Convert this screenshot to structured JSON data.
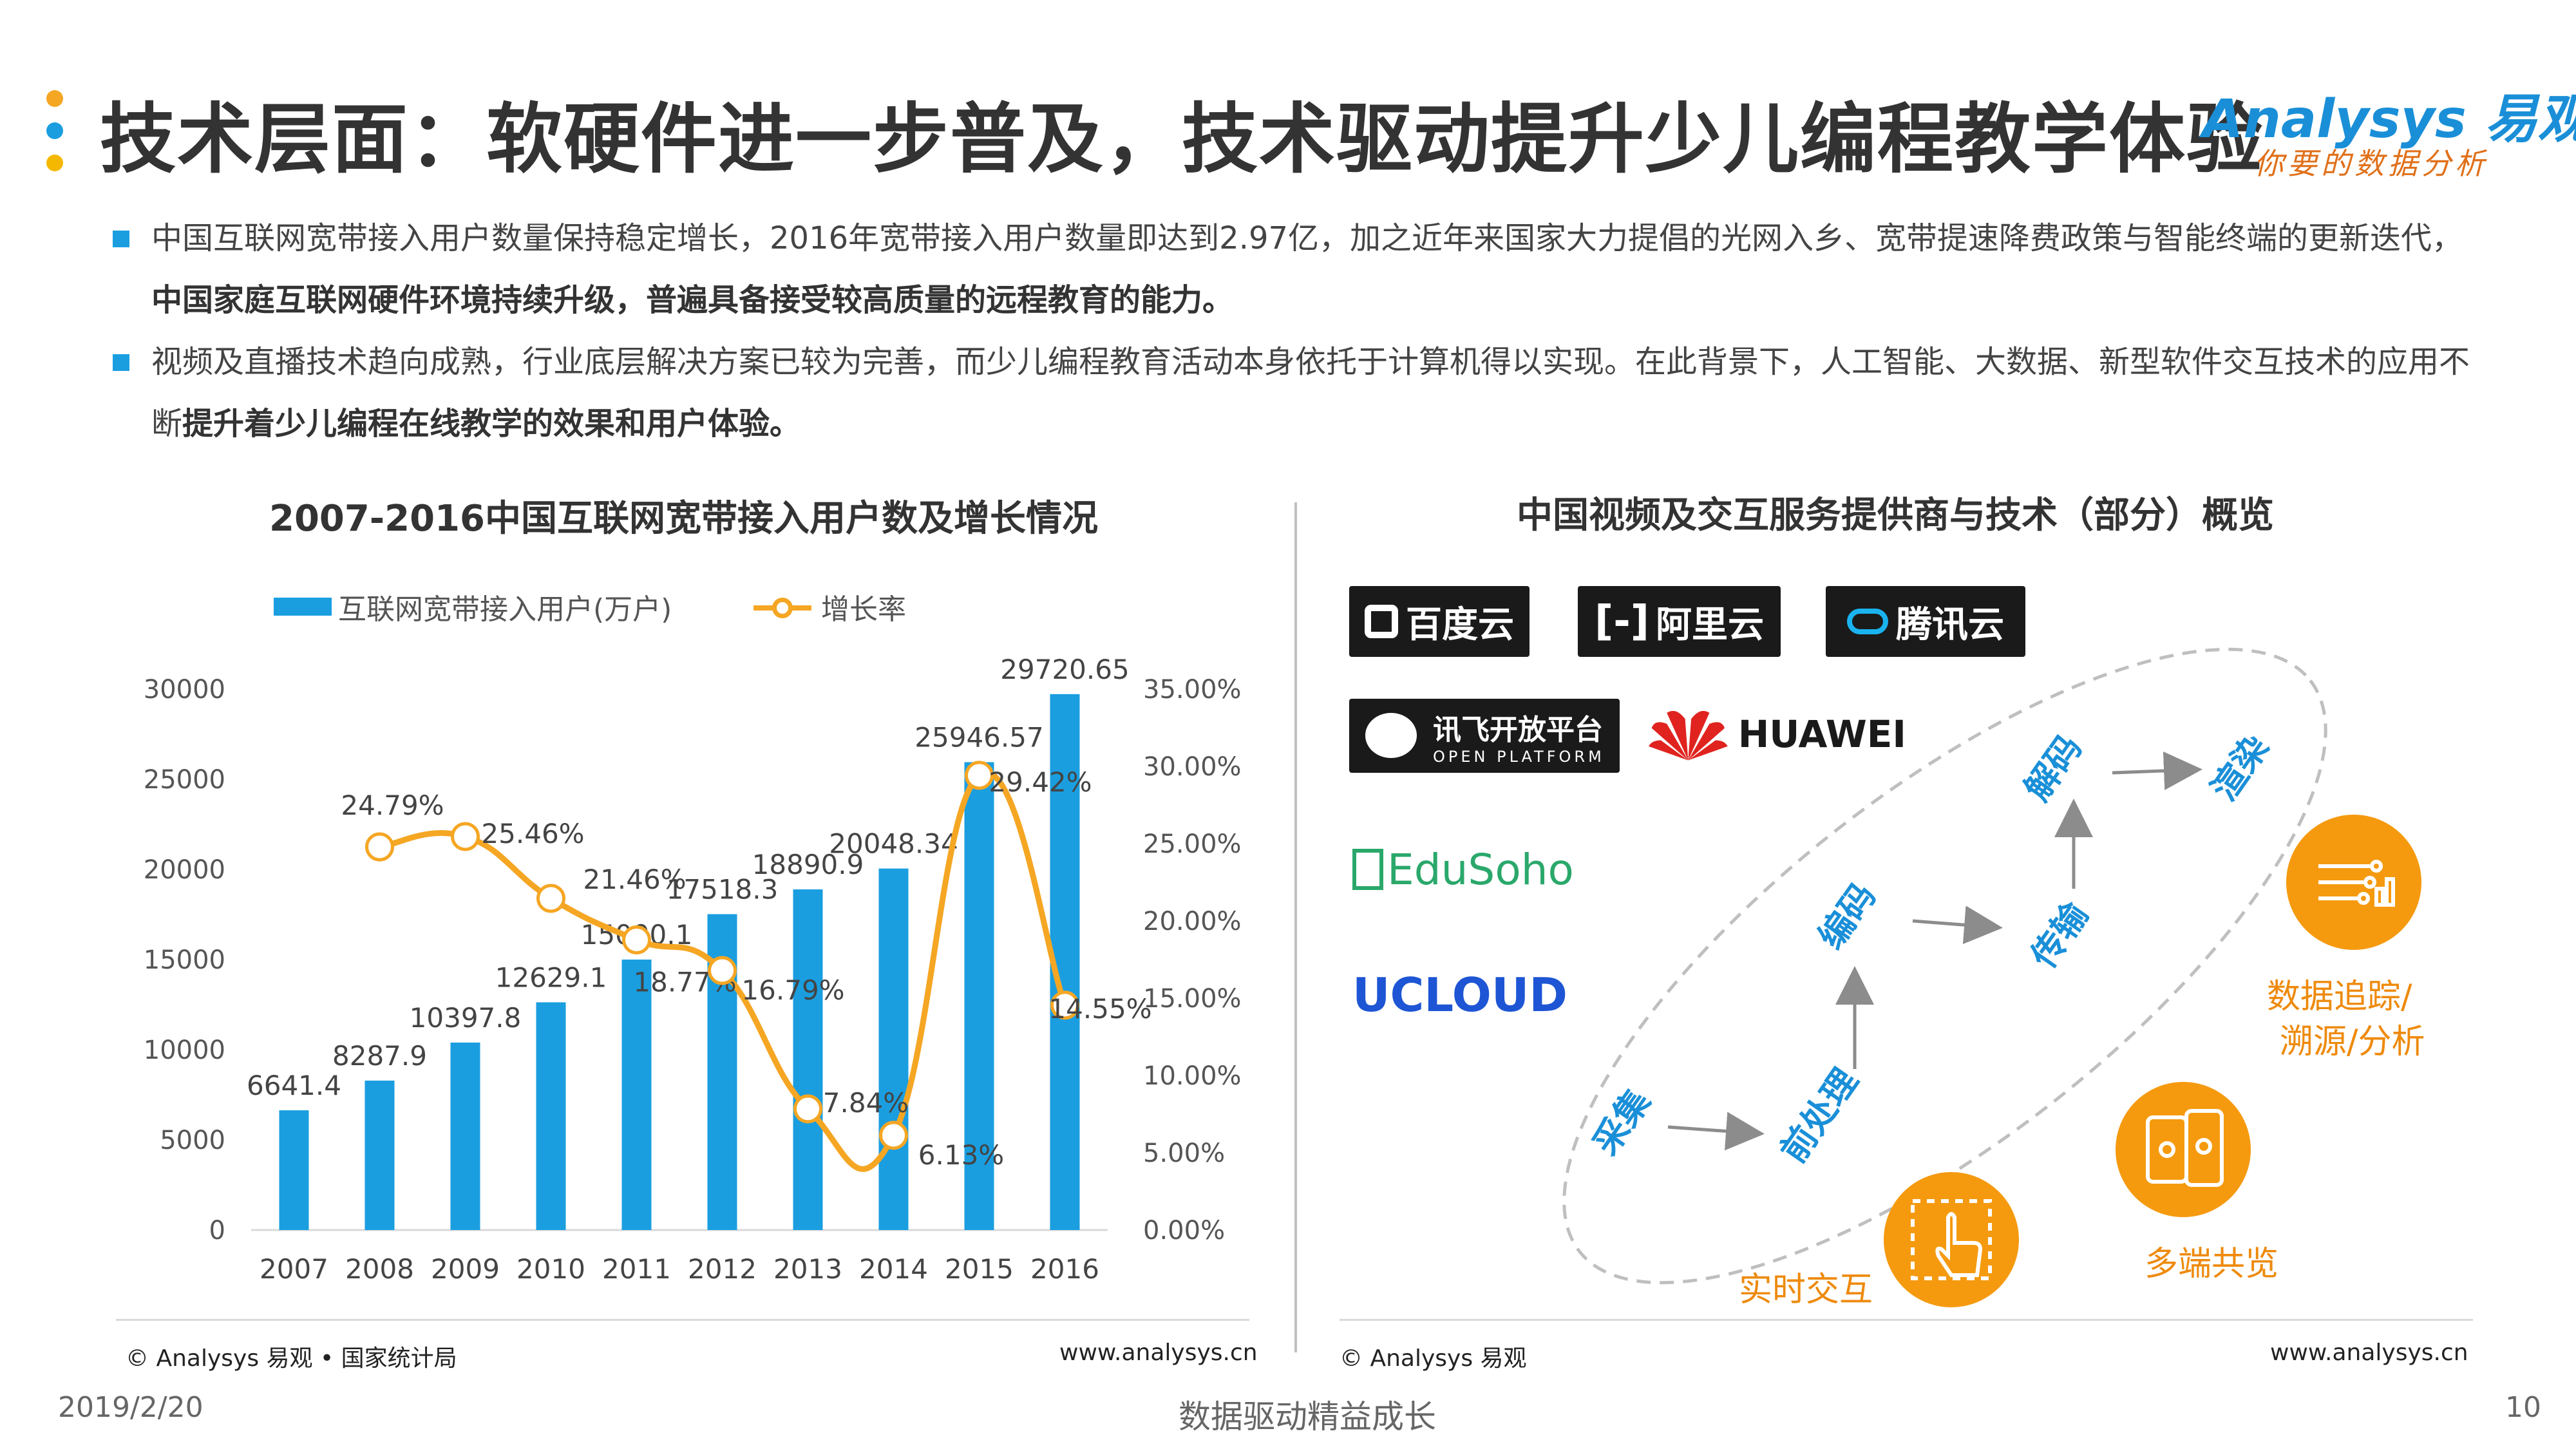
{
  "header": {
    "title": "技术层面：软硬件进一步普及，技术驱动提升少儿编程教学体验",
    "logo_main": "Analysys 易观",
    "logo_sub": "你要的数据分析"
  },
  "bullets": [
    {
      "text_plain": "中国互联网宽带接入用户数量保持稳定增长，2016年宽带接入用户数量即达到2.97亿，加之近年来国家大力提倡的光网入乡、宽带提速降费政策与智能终端的更新迭代，",
      "text_bold": "中国家庭互联网硬件环境持续升级，普遍具备接受较高质量的远程教育的能力。"
    },
    {
      "text_plain": "视频及直播技术趋向成熟，行业底层解决方案已较为完善，而少儿编程教育活动本身依托于计算机得以实现。在此背景下，人工智能、大数据、新型软件交互技术的应用不断",
      "text_bold": "提升着少儿编程在线教学的效果和用户体验。"
    }
  ],
  "left_panel": {
    "title": "2007-2016中国互联网宽带接入用户数及增长情况",
    "legend_bar": "互联网宽带接入用户(万户)",
    "legend_line": "增长率",
    "source": "© Analysys 易观 • 国家统计局",
    "url": "www.analysys.cn"
  },
  "chart_data": {
    "type": "bar",
    "categories": [
      "2007",
      "2008",
      "2009",
      "2010",
      "2011",
      "2012",
      "2013",
      "2014",
      "2015",
      "2016"
    ],
    "series": [
      {
        "name": "互联网宽带接入用户(万户)",
        "type": "bar",
        "axis": "left",
        "values": [
          6641.4,
          8287.9,
          10397.8,
          12629.1,
          15000.1,
          17518.3,
          18890.9,
          20048.34,
          25946.57,
          29720.65
        ],
        "labels": [
          "6641.4",
          "8287.9",
          "10397.8",
          "12629.1",
          "15000.1",
          "17518.3",
          "18890.9",
          "20048.34",
          "25946.57",
          "29720.65"
        ]
      },
      {
        "name": "增长率",
        "type": "line",
        "axis": "right",
        "values": [
          null,
          24.79,
          25.46,
          21.46,
          18.77,
          16.79,
          7.84,
          6.13,
          29.42,
          14.55
        ],
        "labels": [
          null,
          "24.79%",
          "25.46%",
          "21.46%",
          "18.77%",
          "16.79%",
          "7.84%",
          "6.13%",
          "29.42%",
          "14.55%"
        ]
      }
    ],
    "y_left": {
      "min": 0,
      "max": 30000,
      "ticks": [
        "0",
        "5000",
        "10000",
        "15000",
        "20000",
        "25000",
        "30000"
      ]
    },
    "y_right": {
      "min": 0,
      "max": 35,
      "ticks": [
        "0.00%",
        "5.00%",
        "10.00%",
        "15.00%",
        "20.00%",
        "25.00%",
        "30.00%",
        "35.00%"
      ]
    },
    "grid": false,
    "legend": "top",
    "colors": {
      "bar": "#1a9ee0",
      "line": "#f5a623"
    }
  },
  "right_panel": {
    "title": "中国视频及交互服务提供商与技术（部分）概览",
    "providers": [
      "百度云",
      "阿里云",
      "腾讯云",
      "讯飞开放平台",
      "OPEN PLATFORM",
      "HUAWEI",
      "EduSoho",
      "UCLOUD"
    ],
    "steps": [
      "采集",
      "前处理",
      "编码",
      "传输",
      "解码",
      "渲染"
    ],
    "features": [
      "数据追踪/",
      "溯源/分析",
      "多端共览",
      "实时交互"
    ],
    "icons": [
      "data-tracking-icon",
      "multi-device-icon",
      "touch-interaction-icon"
    ],
    "source": "© Analysys 易观",
    "url": "www.analysys.cn"
  },
  "footer": {
    "date": "2019/2/20",
    "slogan": "数据驱动精益成长",
    "page": "10"
  },
  "colors": {
    "accent_blue": "#1a9ee0",
    "accent_orange": "#f59a0f",
    "dot_yellow": "#f5b800"
  }
}
